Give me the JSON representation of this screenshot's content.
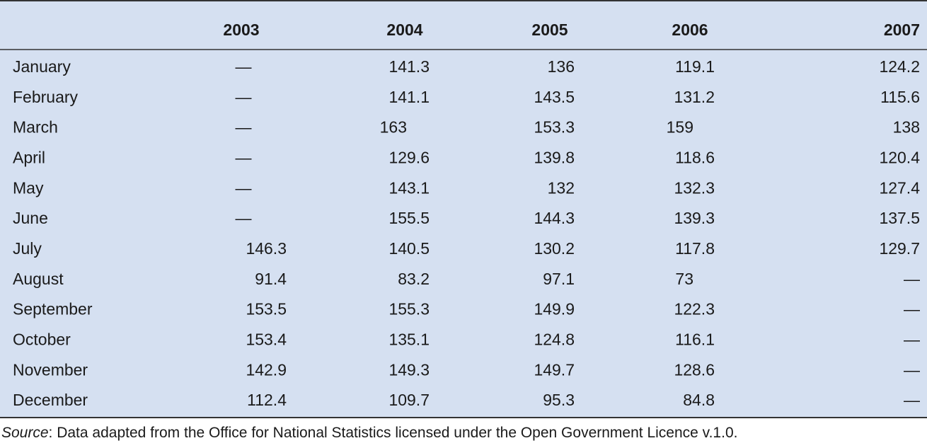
{
  "table": {
    "header": [
      "2003",
      "2004",
      "2005",
      "2006",
      "2007"
    ],
    "rows": [
      {
        "month": "January",
        "cells": [
          "—",
          141.3,
          136,
          119.1,
          124.2
        ]
      },
      {
        "month": "February",
        "cells": [
          "—",
          141.1,
          143.5,
          131.2,
          115.6
        ]
      },
      {
        "month": "March",
        "cells": [
          "—",
          163,
          153.3,
          159,
          138
        ]
      },
      {
        "month": "April",
        "cells": [
          "—",
          129.6,
          139.8,
          118.6,
          120.4
        ]
      },
      {
        "month": "May",
        "cells": [
          "—",
          143.1,
          132,
          132.3,
          127.4
        ]
      },
      {
        "month": "June",
        "cells": [
          "—",
          155.5,
          144.3,
          139.3,
          137.5
        ]
      },
      {
        "month": "July",
        "cells": [
          146.3,
          140.5,
          130.2,
          117.8,
          129.7
        ]
      },
      {
        "month": "August",
        "cells": [
          91.4,
          83.2,
          97.1,
          73,
          "—"
        ]
      },
      {
        "month": "September",
        "cells": [
          153.5,
          155.3,
          149.9,
          122.3,
          "—"
        ]
      },
      {
        "month": "October",
        "cells": [
          153.4,
          135.1,
          124.8,
          116.1,
          "—"
        ]
      },
      {
        "month": "November",
        "cells": [
          142.9,
          149.3,
          149.7,
          128.6,
          "—"
        ]
      },
      {
        "month": "December",
        "cells": [
          112.4,
          109.7,
          95.3,
          84.8,
          "—"
        ]
      }
    ]
  },
  "source": {
    "label": "Source",
    "text": ": Data adapted from the Office for National Statistics licensed under the Open Government Licence v.1.0."
  }
}
